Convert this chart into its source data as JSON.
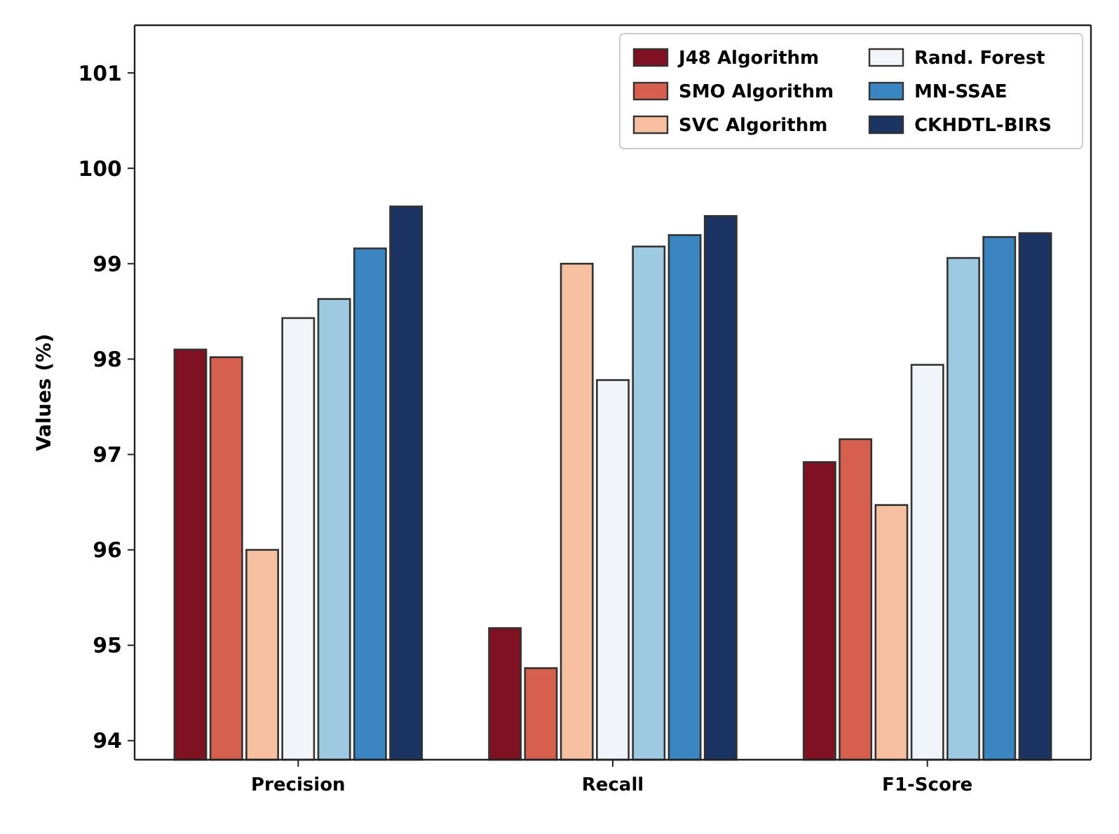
{
  "chart_data": {
    "type": "bar",
    "ylabel": "Values (%)",
    "categories": [
      "Precision",
      "Recall",
      "F1-Score"
    ],
    "series": [
      {
        "name": "J48 Algorithm",
        "color": "#7f1122",
        "values": [
          98.1,
          95.18,
          96.92
        ]
      },
      {
        "name": "SMO Algorithm",
        "color": "#d6604d",
        "values": [
          98.02,
          94.76,
          97.16
        ]
      },
      {
        "name": "SVC Algorithm",
        "color": "#f5bfa0",
        "values": [
          96.0,
          99.0,
          96.47
        ]
      },
      {
        "name": "Rand. Forest",
        "color": "#f2f5f8",
        "values": [
          98.43,
          97.78,
          97.94
        ]
      },
      {
        "color": "#9ecae1",
        "values": [
          98.63,
          99.18,
          99.06
        ]
      },
      {
        "name": "MN-SSAE",
        "color": "#3a86c0",
        "values": [
          99.16,
          99.3,
          99.28
        ]
      },
      {
        "name": "CKHDTL-BIRS",
        "color": "#1c3461",
        "values": [
          99.6,
          99.5,
          99.32
        ]
      }
    ],
    "ylim": [
      93.8,
      101.5
    ],
    "yticks": [
      94,
      95,
      96,
      97,
      98,
      99,
      100,
      101
    ],
    "grid": false,
    "legend": "top right"
  }
}
